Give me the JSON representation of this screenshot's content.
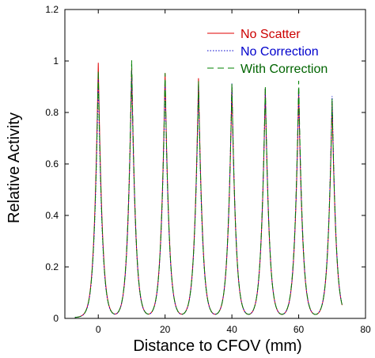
{
  "chart_data": {
    "type": "line",
    "title": "",
    "xlabel": "Distance to CFOV (mm)",
    "ylabel": "Relative Activity",
    "xlim": [
      -10,
      80
    ],
    "ylim": [
      0,
      1.2
    ],
    "x_ticks": [
      "0",
      "20",
      "40",
      "60",
      "80"
    ],
    "x_tick_values": [
      0,
      20,
      40,
      60,
      80
    ],
    "y_ticks": [
      "0",
      "0.2",
      "0.4",
      "0.6",
      "0.8",
      "1",
      "1.2"
    ],
    "y_tick_values": [
      0,
      0.2,
      0.4,
      0.6,
      0.8,
      1.0,
      1.2
    ],
    "grid": false,
    "legend_position": "top-right",
    "peak_positions": [
      0,
      10,
      20,
      30,
      40,
      50,
      60,
      70
    ],
    "series": [
      {
        "name": "No Scatter",
        "color": "#e00000",
        "style": "solid",
        "peak_values": [
          0.99,
          0.97,
          0.95,
          0.93,
          0.9,
          0.89,
          0.88,
          0.84
        ]
      },
      {
        "name": "No Correction",
        "color": "#0000cc",
        "style": "dotted",
        "peak_values": [
          0.93,
          0.96,
          0.92,
          0.9,
          0.91,
          0.89,
          0.89,
          0.86
        ]
      },
      {
        "name": "With Correction",
        "color": "#008000",
        "style": "dashed",
        "peak_values": [
          0.96,
          1.0,
          0.95,
          0.92,
          0.91,
          0.9,
          0.92,
          0.85
        ]
      }
    ]
  }
}
